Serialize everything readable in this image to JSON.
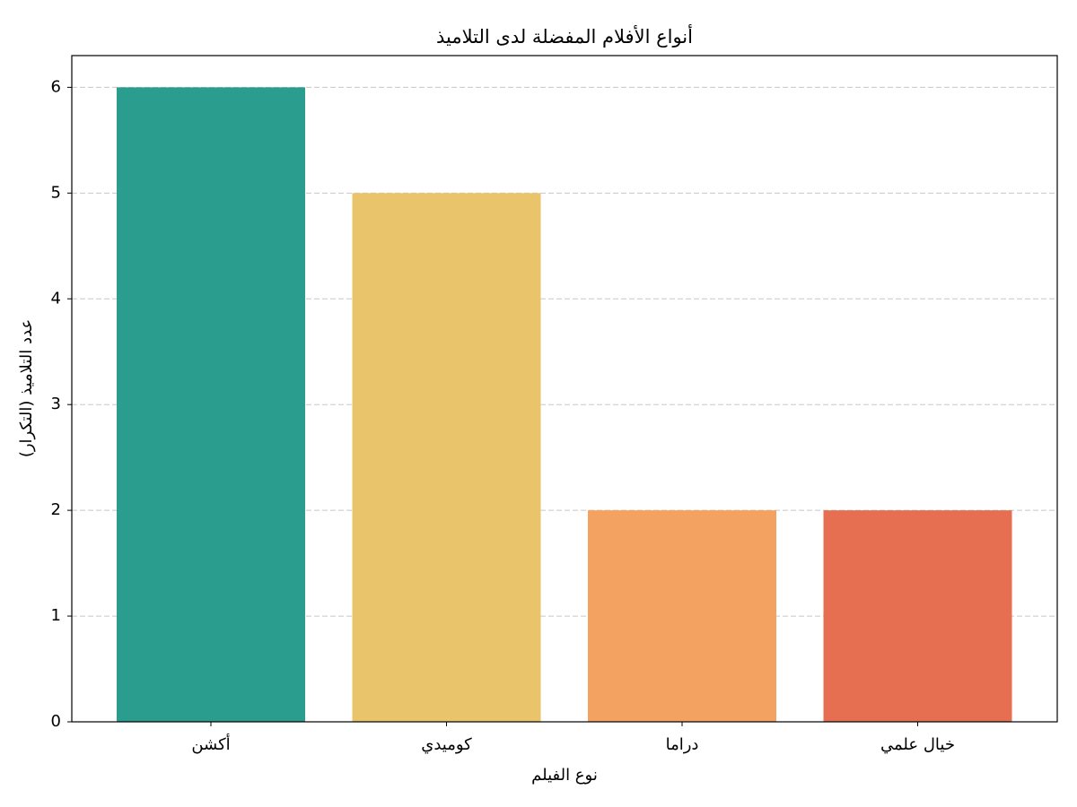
{
  "chart_data": {
    "type": "bar",
    "title": "أنواع الأفلام المفضلة لدى التلاميذ",
    "x_label": "نوع الفيلم",
    "y_label": "عدد التلاميذ (التكرار)",
    "categories": [
      "أكشن",
      "كوميدي",
      "دراما",
      "خيال علمي"
    ],
    "values": [
      6,
      5,
      2,
      2
    ],
    "colors": [
      "#2a9d8f",
      "#e9c46a",
      "#f4a261",
      "#e76f51"
    ],
    "ylim": [
      0,
      6.3
    ],
    "yticks": [
      0,
      1,
      2,
      3,
      4,
      5,
      6
    ],
    "grid": true
  }
}
